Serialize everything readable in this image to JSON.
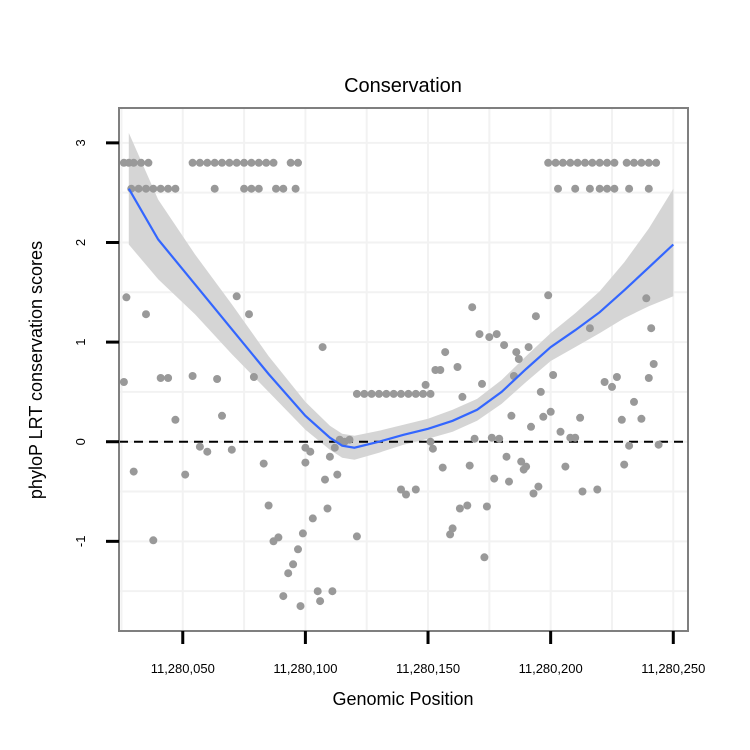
{
  "chart_data": {
    "type": "scatter",
    "title": "Conservation",
    "xlabel": "Genomic Position",
    "ylabel": "phyloP LRT conservation scores",
    "xlim": [
      11280024,
      11280256
    ],
    "ylim": [
      -1.9,
      3.35
    ],
    "x_ticks": [
      11280050,
      11280100,
      11280150,
      11280200,
      11280250
    ],
    "x_tick_labels": [
      "11,280,050",
      "11,280,100",
      "11,280,150",
      "11,280,200",
      "11,280,250"
    ],
    "y_ticks": [
      -1,
      0,
      1,
      2,
      3
    ],
    "y_tick_labels": [
      "-1",
      "0",
      "1",
      "2",
      "3"
    ],
    "reference_line": {
      "y": 0,
      "style": "dashed"
    },
    "grid": true,
    "colors": {
      "points": "#999999",
      "smooth": "#3366ff",
      "ribbon": "#d3d3d3",
      "grid": "#f2f2f2",
      "border": "#7f7f7f"
    },
    "series": [
      {
        "name": "scores",
        "points": [
          [
            11280026,
            2.8
          ],
          [
            11280028,
            2.8
          ],
          [
            11280030,
            2.8
          ],
          [
            11280033,
            2.8
          ],
          [
            11280036,
            2.8
          ],
          [
            11280029,
            2.54
          ],
          [
            11280032,
            2.54
          ],
          [
            11280035,
            2.54
          ],
          [
            11280038,
            2.54
          ],
          [
            11280041,
            2.54
          ],
          [
            11280044,
            2.54
          ],
          [
            11280047,
            2.54
          ],
          [
            11280054,
            2.8
          ],
          [
            11280057,
            2.8
          ],
          [
            11280060,
            2.8
          ],
          [
            11280063,
            2.8
          ],
          [
            11280066,
            2.8
          ],
          [
            11280069,
            2.8
          ],
          [
            11280072,
            2.8
          ],
          [
            11280075,
            2.8
          ],
          [
            11280078,
            2.8
          ],
          [
            11280081,
            2.8
          ],
          [
            11280084,
            2.8
          ],
          [
            11280087,
            2.8
          ],
          [
            11280094,
            2.8
          ],
          [
            11280097,
            2.8
          ],
          [
            11280063,
            2.54
          ],
          [
            11280075,
            2.54
          ],
          [
            11280078,
            2.54
          ],
          [
            11280081,
            2.54
          ],
          [
            11280088,
            2.54
          ],
          [
            11280091,
            2.54
          ],
          [
            11280096,
            2.54
          ],
          [
            11280027,
            1.45
          ],
          [
            11280026,
            0.6
          ],
          [
            11280030,
            -0.3
          ],
          [
            11280035,
            1.28
          ],
          [
            11280038,
            -0.99
          ],
          [
            11280041,
            0.64
          ],
          [
            11280044,
            0.64
          ],
          [
            11280047,
            0.22
          ],
          [
            11280051,
            -0.33
          ],
          [
            11280054,
            0.66
          ],
          [
            11280057,
            -0.05
          ],
          [
            11280060,
            -0.1
          ],
          [
            11280064,
            0.63
          ],
          [
            11280066,
            0.26
          ],
          [
            11280070,
            -0.08
          ],
          [
            11280072,
            1.46
          ],
          [
            11280077,
            1.28
          ],
          [
            11280079,
            0.65
          ],
          [
            11280083,
            -0.22
          ],
          [
            11280085,
            -0.64
          ],
          [
            11280087,
            -1.0
          ],
          [
            11280089,
            -0.96
          ],
          [
            11280091,
            -1.55
          ],
          [
            11280093,
            -1.32
          ],
          [
            11280095,
            -1.23
          ],
          [
            11280097,
            -1.08
          ],
          [
            11280098,
            -1.65
          ],
          [
            11280099,
            -0.92
          ],
          [
            11280100,
            -0.06
          ],
          [
            11280100,
            -0.21
          ],
          [
            11280102,
            -0.1
          ],
          [
            11280103,
            -0.77
          ],
          [
            11280105,
            -1.5
          ],
          [
            11280106,
            -1.6
          ],
          [
            11280107,
            0.95
          ],
          [
            11280108,
            -0.38
          ],
          [
            11280109,
            -0.67
          ],
          [
            11280110,
            -0.15
          ],
          [
            11280111,
            -1.5
          ],
          [
            11280112,
            -0.06
          ],
          [
            11280113,
            -0.33
          ],
          [
            11280114,
            0.02
          ],
          [
            11280116,
            0.0
          ],
          [
            11280118,
            0.02
          ],
          [
            11280121,
            -0.95
          ],
          [
            11280121,
            0.48
          ],
          [
            11280124,
            0.48
          ],
          [
            11280127,
            0.48
          ],
          [
            11280130,
            0.48
          ],
          [
            11280133,
            0.48
          ],
          [
            11280136,
            0.48
          ],
          [
            11280139,
            0.48
          ],
          [
            11280142,
            0.48
          ],
          [
            11280145,
            0.48
          ],
          [
            11280148,
            0.48
          ],
          [
            11280151,
            0.48
          ],
          [
            11280139,
            -0.48
          ],
          [
            11280141,
            -0.53
          ],
          [
            11280145,
            -0.48
          ],
          [
            11280149,
            0.57
          ],
          [
            11280151,
            0.0
          ],
          [
            11280152,
            -0.07
          ],
          [
            11280153,
            0.72
          ],
          [
            11280155,
            0.72
          ],
          [
            11280156,
            -0.26
          ],
          [
            11280157,
            0.9
          ],
          [
            11280159,
            -0.93
          ],
          [
            11280160,
            -0.87
          ],
          [
            11280162,
            0.75
          ],
          [
            11280163,
            -0.67
          ],
          [
            11280164,
            0.45
          ],
          [
            11280166,
            -0.64
          ],
          [
            11280167,
            -0.24
          ],
          [
            11280168,
            1.35
          ],
          [
            11280169,
            0.03
          ],
          [
            11280171,
            1.08
          ],
          [
            11280172,
            0.58
          ],
          [
            11280173,
            -1.16
          ],
          [
            11280174,
            -0.65
          ],
          [
            11280175,
            1.05
          ],
          [
            11280176,
            0.04
          ],
          [
            11280177,
            -0.37
          ],
          [
            11280178,
            1.08
          ],
          [
            11280179,
            0.03
          ],
          [
            11280181,
            0.97
          ],
          [
            11280182,
            -0.15
          ],
          [
            11280183,
            -0.4
          ],
          [
            11280184,
            0.26
          ],
          [
            11280185,
            0.66
          ],
          [
            11280186,
            0.9
          ],
          [
            11280187,
            0.83
          ],
          [
            11280188,
            -0.2
          ],
          [
            11280189,
            -0.28
          ],
          [
            11280190,
            -0.25
          ],
          [
            11280191,
            0.95
          ],
          [
            11280192,
            0.15
          ],
          [
            11280193,
            -0.52
          ],
          [
            11280194,
            1.26
          ],
          [
            11280195,
            -0.45
          ],
          [
            11280196,
            0.5
          ],
          [
            11280197,
            0.25
          ],
          [
            11280199,
            1.47
          ],
          [
            11280200,
            0.3
          ],
          [
            11280201,
            0.67
          ],
          [
            11280204,
            0.1
          ],
          [
            11280206,
            -0.25
          ],
          [
            11280208,
            0.04
          ],
          [
            11280210,
            0.04
          ],
          [
            11280212,
            0.24
          ],
          [
            11280213,
            -0.5
          ],
          [
            11280216,
            1.14
          ],
          [
            11280219,
            -0.48
          ],
          [
            11280222,
            0.6
          ],
          [
            11280225,
            0.55
          ],
          [
            11280227,
            0.65
          ],
          [
            11280229,
            0.22
          ],
          [
            11280230,
            -0.23
          ],
          [
            11280232,
            -0.04
          ],
          [
            11280234,
            0.4
          ],
          [
            11280237,
            0.23
          ],
          [
            11280239,
            1.44
          ],
          [
            11280240,
            0.64
          ],
          [
            11280241,
            1.14
          ],
          [
            11280242,
            0.78
          ],
          [
            11280244,
            -0.03
          ],
          [
            11280199,
            2.8
          ],
          [
            11280202,
            2.8
          ],
          [
            11280205,
            2.8
          ],
          [
            11280208,
            2.8
          ],
          [
            11280211,
            2.8
          ],
          [
            11280214,
            2.8
          ],
          [
            11280217,
            2.8
          ],
          [
            11280220,
            2.8
          ],
          [
            11280223,
            2.8
          ],
          [
            11280226,
            2.8
          ],
          [
            11280231,
            2.8
          ],
          [
            11280234,
            2.8
          ],
          [
            11280237,
            2.8
          ],
          [
            11280240,
            2.8
          ],
          [
            11280243,
            2.8
          ],
          [
            11280203,
            2.54
          ],
          [
            11280210,
            2.54
          ],
          [
            11280216,
            2.54
          ],
          [
            11280220,
            2.54
          ],
          [
            11280223,
            2.54
          ],
          [
            11280226,
            2.54
          ],
          [
            11280232,
            2.54
          ],
          [
            11280240,
            2.54
          ]
        ]
      }
    ],
    "smooth": {
      "method": "loess",
      "x": [
        11280028,
        11280040,
        11280055,
        11280070,
        11280085,
        11280100,
        11280110,
        11280115,
        11280120,
        11280130,
        11280140,
        11280150,
        11280160,
        11280170,
        11280180,
        11280190,
        11280200,
        11280210,
        11280220,
        11280230,
        11280240,
        11280250
      ],
      "y": [
        2.54,
        2.03,
        1.58,
        1.13,
        0.68,
        0.26,
        0.04,
        -0.04,
        -0.06,
        0.0,
        0.07,
        0.13,
        0.21,
        0.32,
        0.5,
        0.73,
        0.95,
        1.12,
        1.3,
        1.52,
        1.75,
        1.98
      ],
      "lower": [
        1.98,
        1.63,
        1.28,
        0.88,
        0.5,
        0.12,
        -0.08,
        -0.16,
        -0.18,
        -0.11,
        -0.03,
        0.03,
        0.1,
        0.21,
        0.38,
        0.6,
        0.81,
        0.95,
        1.09,
        1.24,
        1.36,
        1.46
      ],
      "upper": [
        3.1,
        2.43,
        1.88,
        1.38,
        0.86,
        0.4,
        0.16,
        0.08,
        0.06,
        0.11,
        0.17,
        0.23,
        0.32,
        0.43,
        0.62,
        0.86,
        1.09,
        1.29,
        1.51,
        1.8,
        2.14,
        2.54
      ]
    }
  }
}
